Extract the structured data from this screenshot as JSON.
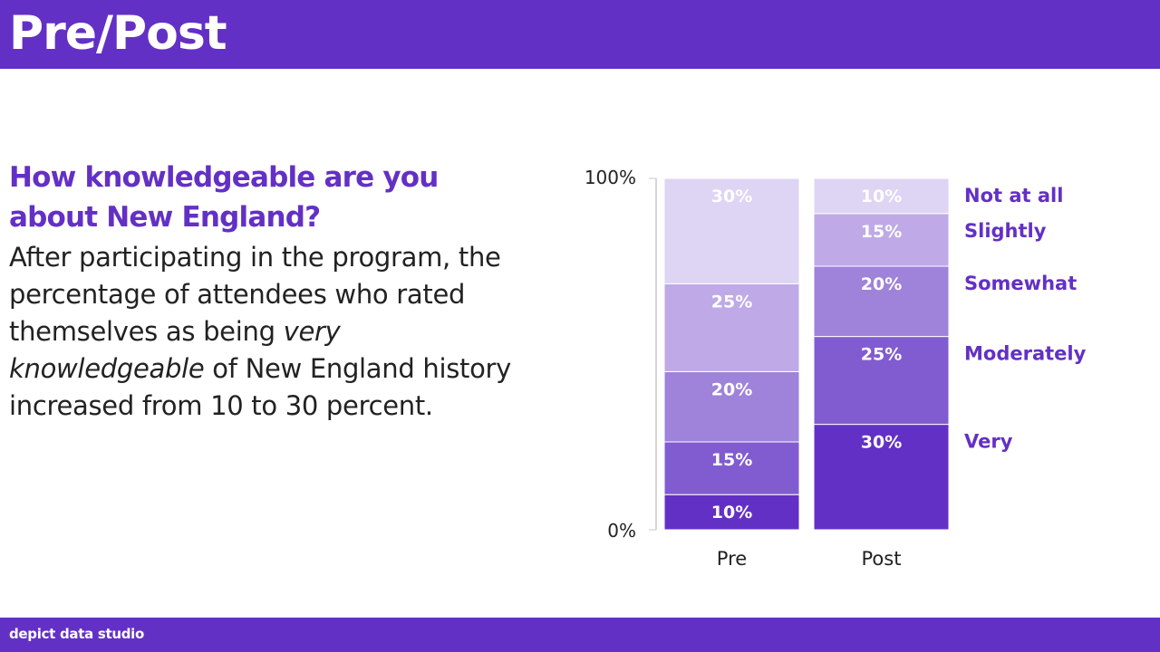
{
  "header": {
    "title": "Pre/Post"
  },
  "footer": {
    "brand": "depict data studio"
  },
  "text": {
    "question": "How knowledgeable are you about New England?",
    "body_part1": "After participating in the program, the percentage of attendees who rated themselves as being ",
    "body_emphasis": "very knowledgeable",
    "body_part2": " of New England history increased from 10 to 30 percent."
  },
  "colors": {
    "brand": "#6330c5",
    "segments": [
      "#6330c5",
      "#815cd0",
      "#9f82da",
      "#bfa9e6",
      "#ded4f3"
    ],
    "legend_text": "#6330c5",
    "axis": "#c8c8c8"
  },
  "chart_data": {
    "type": "bar",
    "stacked": true,
    "title": "",
    "xlabel": "",
    "ylabel": "",
    "ylim": [
      0,
      100
    ],
    "y_ticks": [
      "0%",
      "100%"
    ],
    "categories": [
      "Pre",
      "Post"
    ],
    "series": [
      {
        "name": "Very",
        "values": [
          10,
          30
        ]
      },
      {
        "name": "Moderately",
        "values": [
          15,
          25
        ]
      },
      {
        "name": "Somewhat",
        "values": [
          20,
          20
        ]
      },
      {
        "name": "Slightly",
        "values": [
          25,
          15
        ]
      },
      {
        "name": "Not at all",
        "values": [
          30,
          10
        ]
      }
    ],
    "data_labels": true,
    "legend": "right (direct labels beside Post bar)"
  }
}
